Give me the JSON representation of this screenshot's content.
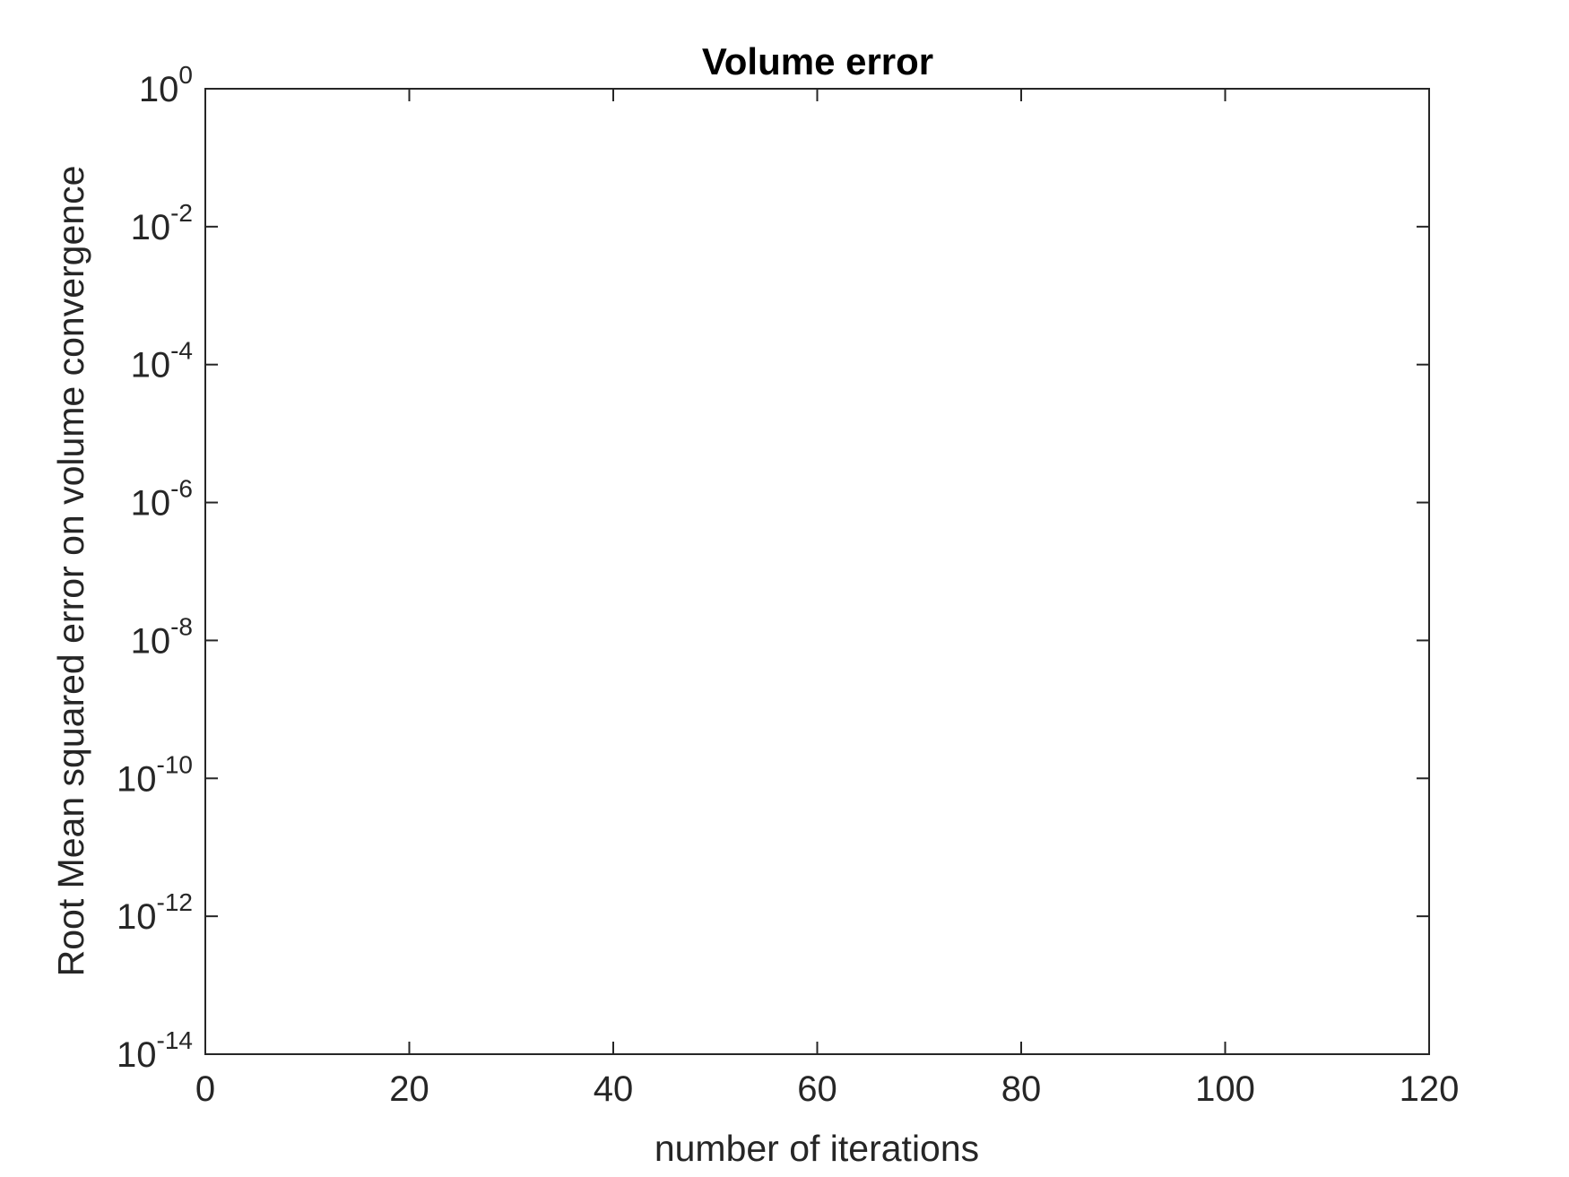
{
  "chart_data": {
    "type": "line",
    "title": "Volume error",
    "xlabel": "number of iterations",
    "ylabel": "Root Mean squared error on volume convergence",
    "xlim": [
      0,
      120
    ],
    "ylim": [
      1e-14,
      1
    ],
    "yscale": "log",
    "grid": false,
    "x_ticks": [
      0,
      20,
      40,
      60,
      80,
      100,
      120
    ],
    "x_tick_labels": [
      "0",
      "20",
      "40",
      "60",
      "80",
      "100",
      "120"
    ],
    "y_tick_exponents": [
      0,
      -2,
      -4,
      -6,
      -8,
      -10,
      -12,
      -14
    ],
    "y_tick_base": "10",
    "y_tick_exponent_labels": [
      "0",
      "-2",
      "-4",
      "-6",
      "-8",
      "-10",
      "-12",
      "-14"
    ],
    "series": []
  },
  "colors": {
    "axis": "#262626",
    "background": "#ffffff"
  }
}
